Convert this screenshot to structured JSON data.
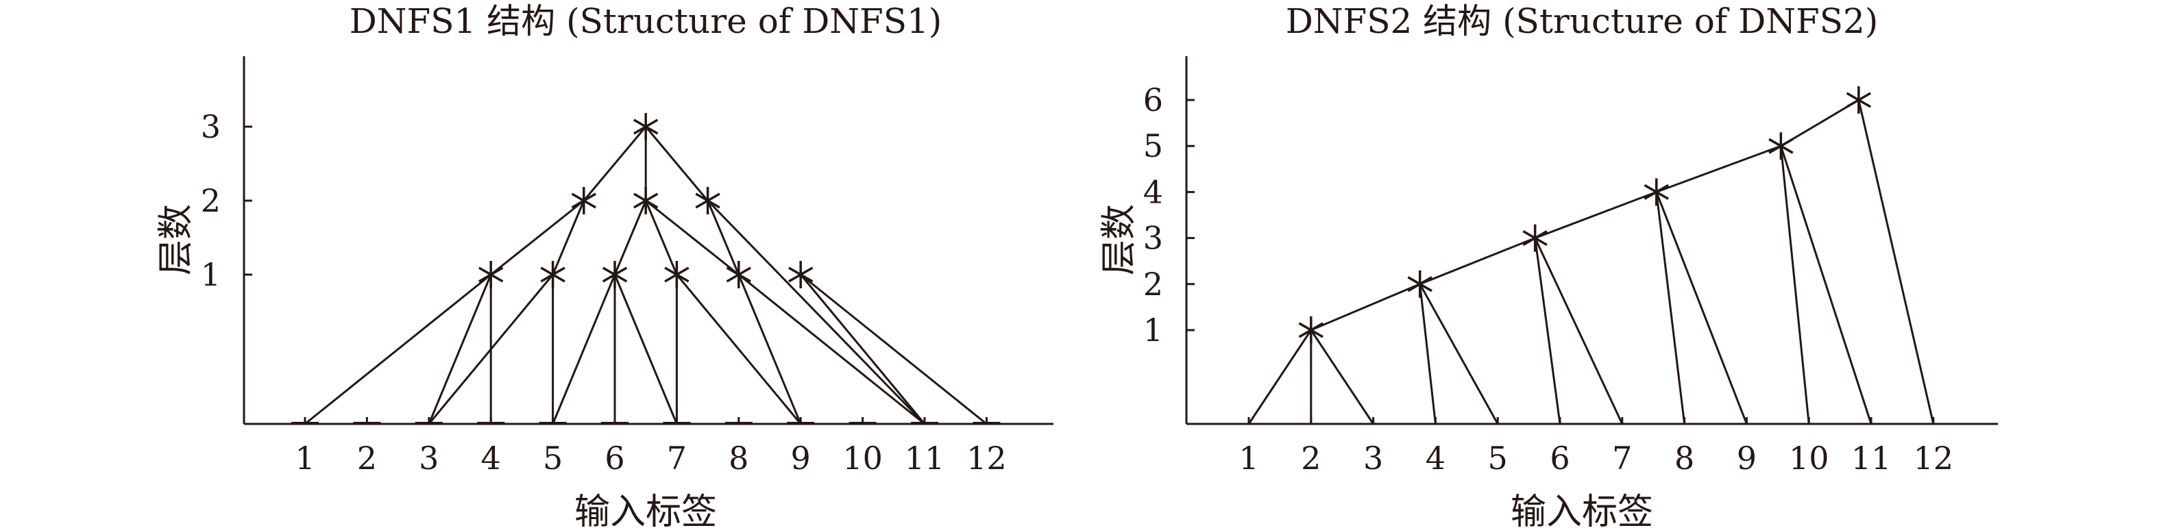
{
  "charts": [
    {
      "title": "DNFS1 结构 (Structure of DNFS1)",
      "xlabel": "输入标签",
      "ylabel": "层数",
      "xticks": [
        "1",
        "2",
        "3",
        "4",
        "5",
        "6",
        "7",
        "8",
        "9",
        "10",
        "11",
        "12"
      ],
      "yticks": [
        "1",
        "2",
        "3"
      ]
    },
    {
      "title": "DNFS2 结构 (Structure of DNFS2)",
      "xlabel": "输入标签",
      "ylabel": "层数",
      "xticks": [
        "1",
        "2",
        "3",
        "4",
        "5",
        "6",
        "7",
        "8",
        "9",
        "10",
        "11",
        "12"
      ],
      "yticks": [
        "1",
        "2",
        "3",
        "4",
        "5",
        "6"
      ]
    }
  ],
  "chart_data": [
    {
      "type": "scatter",
      "title": "DNFS1 结构 (Structure of DNFS1)",
      "xlabel": "输入标签",
      "ylabel": "层数",
      "xlim": [
        0,
        13
      ],
      "ylim": [
        -2,
        4.2
      ],
      "input_labels": [
        1,
        2,
        3,
        4,
        5,
        6,
        7,
        8,
        9,
        10,
        11,
        12
      ],
      "nodes": [
        {
          "x": 4,
          "y": 1
        },
        {
          "x": 5,
          "y": 1
        },
        {
          "x": 6,
          "y": 1
        },
        {
          "x": 7,
          "y": 1
        },
        {
          "x": 8,
          "y": 1
        },
        {
          "x": 9,
          "y": 1
        },
        {
          "x": 5.5,
          "y": 2
        },
        {
          "x": 6.5,
          "y": 2
        },
        {
          "x": 7.5,
          "y": 2
        },
        {
          "x": 6.5,
          "y": 3
        }
      ],
      "edges": [
        [
          [
            1,
            -2
          ],
          [
            4,
            1
          ]
        ],
        [
          [
            3,
            -2
          ],
          [
            4,
            1
          ]
        ],
        [
          [
            4,
            -2
          ],
          [
            4,
            1
          ]
        ],
        [
          [
            3,
            -2
          ],
          [
            5,
            1
          ]
        ],
        [
          [
            5,
            -2
          ],
          [
            5,
            1
          ]
        ],
        [
          [
            5,
            -2
          ],
          [
            6,
            1
          ]
        ],
        [
          [
            6,
            -2
          ],
          [
            6,
            1
          ]
        ],
        [
          [
            7,
            -2
          ],
          [
            6,
            1
          ]
        ],
        [
          [
            7,
            -2
          ],
          [
            7,
            1
          ]
        ],
        [
          [
            9,
            -2
          ],
          [
            7,
            1
          ]
        ],
        [
          [
            9,
            -2
          ],
          [
            8,
            1
          ]
        ],
        [
          [
            11,
            -2
          ],
          [
            8,
            1
          ]
        ],
        [
          [
            11,
            -2
          ],
          [
            9,
            1
          ]
        ],
        [
          [
            12,
            -2
          ],
          [
            9,
            1
          ]
        ],
        [
          [
            4,
            1
          ],
          [
            5.5,
            2
          ]
        ],
        [
          [
            5,
            1
          ],
          [
            5.5,
            2
          ]
        ],
        [
          [
            6,
            1
          ],
          [
            6.5,
            2
          ]
        ],
        [
          [
            7,
            1
          ],
          [
            6.5,
            2
          ]
        ],
        [
          [
            8,
            1
          ],
          [
            6.5,
            2
          ]
        ],
        [
          [
            8,
            1
          ],
          [
            7.5,
            2
          ]
        ],
        [
          [
            11,
            -2
          ],
          [
            7.5,
            2
          ]
        ],
        [
          [
            5.5,
            2
          ],
          [
            6.5,
            3
          ]
        ],
        [
          [
            6.5,
            2
          ],
          [
            6.5,
            3
          ]
        ],
        [
          [
            7.5,
            2
          ],
          [
            6.5,
            3
          ]
        ]
      ]
    },
    {
      "type": "scatter",
      "title": "DNFS2 结构 (Structure of DNFS2)",
      "xlabel": "输入标签",
      "ylabel": "层数",
      "xlim": [
        0,
        13
      ],
      "ylim": [
        -1,
        7
      ],
      "input_labels": [
        1,
        2,
        3,
        4,
        5,
        6,
        7,
        8,
        9,
        10,
        11,
        12
      ],
      "nodes": [
        {
          "x": 2,
          "y": 1
        },
        {
          "x": 3.75,
          "y": 2
        },
        {
          "x": 5.6,
          "y": 3
        },
        {
          "x": 7.55,
          "y": 4
        },
        {
          "x": 9.55,
          "y": 5
        },
        {
          "x": 10.8,
          "y": 6
        }
      ],
      "edges": [
        [
          [
            1,
            -1
          ],
          [
            2,
            1
          ]
        ],
        [
          [
            2,
            -1
          ],
          [
            2,
            1
          ]
        ],
        [
          [
            3,
            -1
          ],
          [
            2,
            1
          ]
        ],
        [
          [
            4,
            -1
          ],
          [
            3.75,
            2
          ]
        ],
        [
          [
            5,
            -1
          ],
          [
            3.75,
            2
          ]
        ],
        [
          [
            2,
            1
          ],
          [
            3.75,
            2
          ]
        ],
        [
          [
            6,
            -1
          ],
          [
            5.6,
            3
          ]
        ],
        [
          [
            7,
            -1
          ],
          [
            5.6,
            3
          ]
        ],
        [
          [
            3.75,
            2
          ],
          [
            5.6,
            3
          ]
        ],
        [
          [
            8,
            -1
          ],
          [
            7.55,
            4
          ]
        ],
        [
          [
            9,
            -1
          ],
          [
            7.55,
            4
          ]
        ],
        [
          [
            5.6,
            3
          ],
          [
            7.55,
            4
          ]
        ],
        [
          [
            10,
            -1
          ],
          [
            9.55,
            5
          ]
        ],
        [
          [
            11,
            -1
          ],
          [
            9.55,
            5
          ]
        ],
        [
          [
            7.55,
            4
          ],
          [
            9.55,
            5
          ]
        ],
        [
          [
            12,
            -1
          ],
          [
            10.8,
            6
          ]
        ],
        [
          [
            9.55,
            5
          ],
          [
            10.8,
            6
          ]
        ]
      ]
    }
  ]
}
